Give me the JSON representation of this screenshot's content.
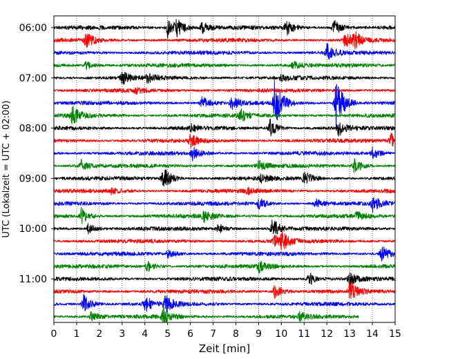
{
  "chart_data": {
    "type": "line",
    "title": "",
    "xlabel": "Zeit  [min]",
    "ylabel": "UTC (Lokalzeit = UTC + 02:00)",
    "xlim": [
      0,
      15
    ],
    "x_ticks": [
      "0",
      "1",
      "2",
      "3",
      "4",
      "5",
      "6",
      "7",
      "8",
      "9",
      "10",
      "11",
      "12",
      "13",
      "14",
      "15"
    ],
    "y_ticks": [
      "06:00",
      "07:00",
      "08:00",
      "09:00",
      "10:00",
      "11:00"
    ],
    "grid": "vertical dotted",
    "trace_interval_min": 15,
    "colors_cycle": [
      "#000000",
      "#ff0000",
      "#0000ff",
      "#008000"
    ],
    "traces": [
      {
        "start": "06:00",
        "color": "#000000",
        "events": [
          [
            5.0,
            1.0
          ],
          [
            5.4,
            0.9
          ],
          [
            6.5,
            0.6
          ],
          [
            10.2,
            0.8
          ],
          [
            12.3,
            0.9
          ]
        ]
      },
      {
        "start": "06:15",
        "color": "#ff0000",
        "events": [
          [
            1.4,
            0.8
          ],
          [
            12.8,
            0.9
          ],
          [
            13.2,
            0.8
          ]
        ]
      },
      {
        "start": "06:30",
        "color": "#0000ff",
        "events": [
          [
            12.0,
            0.9
          ]
        ]
      },
      {
        "start": "06:45",
        "color": "#008000",
        "events": [
          [
            1.4,
            0.4
          ],
          [
            10.5,
            0.4
          ]
        ]
      },
      {
        "start": "07:00",
        "color": "#000000",
        "events": [
          [
            3.0,
            0.7
          ],
          [
            4.1,
            0.5
          ],
          [
            10.0,
            0.4
          ]
        ]
      },
      {
        "start": "07:15",
        "color": "#ff0000",
        "events": [
          [
            3.6,
            0.3
          ]
        ]
      },
      {
        "start": "07:30",
        "color": "#0000ff",
        "events": [
          [
            9.7,
            2.5
          ],
          [
            12.4,
            3.2
          ],
          [
            6.5,
            0.7
          ],
          [
            7.8,
            0.7
          ]
        ]
      },
      {
        "start": "07:45",
        "color": "#008000",
        "events": [
          [
            0.8,
            1.0
          ],
          [
            8.2,
            0.6
          ]
        ]
      },
      {
        "start": "08:00",
        "color": "#000000",
        "events": [
          [
            6.0,
            0.4
          ],
          [
            9.5,
            0.9
          ],
          [
            12.5,
            0.8
          ]
        ]
      },
      {
        "start": "08:15",
        "color": "#ff0000",
        "events": [
          [
            6.0,
            0.7
          ],
          [
            14.8,
            0.9
          ]
        ]
      },
      {
        "start": "08:30",
        "color": "#0000ff",
        "events": [
          [
            6.1,
            0.7
          ],
          [
            14.0,
            0.6
          ]
        ]
      },
      {
        "start": "08:45",
        "color": "#008000",
        "events": [
          [
            1.2,
            0.6
          ],
          [
            9.0,
            0.5
          ],
          [
            13.2,
            0.9
          ]
        ]
      },
      {
        "start": "09:00",
        "color": "#000000",
        "events": [
          [
            4.8,
            1.3
          ],
          [
            11.0,
            0.8
          ],
          [
            9.1,
            0.4
          ]
        ]
      },
      {
        "start": "09:15",
        "color": "#ff0000",
        "events": [
          [
            2.5,
            0.3
          ],
          [
            8.5,
            0.3
          ]
        ]
      },
      {
        "start": "09:30",
        "color": "#0000ff",
        "events": [
          [
            9.0,
            0.6
          ],
          [
            11.5,
            0.5
          ],
          [
            14.0,
            0.8
          ]
        ]
      },
      {
        "start": "09:45",
        "color": "#008000",
        "events": [
          [
            1.2,
            0.8
          ],
          [
            6.6,
            0.6
          ],
          [
            13.3,
            0.4
          ]
        ]
      },
      {
        "start": "10:00",
        "color": "#000000",
        "events": [
          [
            1.5,
            0.5
          ],
          [
            7.2,
            0.5
          ],
          [
            9.6,
            1.2
          ]
        ]
      },
      {
        "start": "10:15",
        "color": "#ff0000",
        "events": [
          [
            10.0,
            0.8
          ],
          [
            9.7,
            0.6
          ]
        ]
      },
      {
        "start": "10:30",
        "color": "#0000ff",
        "events": [
          [
            5.0,
            0.5
          ],
          [
            14.4,
            0.9
          ]
        ]
      },
      {
        "start": "10:45",
        "color": "#008000",
        "events": [
          [
            4.1,
            0.6
          ],
          [
            9.0,
            0.6
          ]
        ]
      },
      {
        "start": "11:00",
        "color": "#000000",
        "events": [
          [
            11.2,
            0.7
          ],
          [
            13.0,
            0.6
          ]
        ]
      },
      {
        "start": "11:15",
        "color": "#ff0000",
        "events": [
          [
            9.7,
            0.8
          ],
          [
            13.0,
            0.9
          ]
        ]
      },
      {
        "start": "11:30",
        "color": "#0000ff",
        "events": [
          [
            1.3,
            1.0
          ],
          [
            4.0,
            0.8
          ],
          [
            4.9,
            0.9
          ]
        ]
      },
      {
        "start": "11:45",
        "color": "#008000",
        "events": [
          [
            4.8,
            0.9
          ],
          [
            1.6,
            0.5
          ],
          [
            10.8,
            0.4
          ]
        ],
        "end_min": 13.4
      }
    ]
  }
}
